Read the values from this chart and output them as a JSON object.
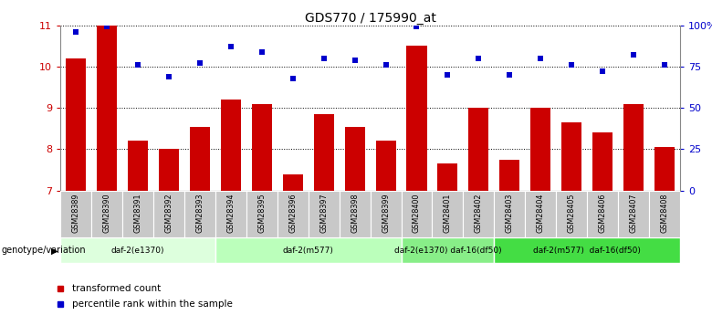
{
  "title": "GDS770 / 175990_at",
  "samples": [
    "GSM28389",
    "GSM28390",
    "GSM28391",
    "GSM28392",
    "GSM28393",
    "GSM28394",
    "GSM28395",
    "GSM28396",
    "GSM28397",
    "GSM28398",
    "GSM28399",
    "GSM28400",
    "GSM28401",
    "GSM28402",
    "GSM28403",
    "GSM28404",
    "GSM28405",
    "GSM28406",
    "GSM28407",
    "GSM28408"
  ],
  "bar_values": [
    10.2,
    11.0,
    8.2,
    8.0,
    8.55,
    9.2,
    9.1,
    7.4,
    8.85,
    8.55,
    8.2,
    10.5,
    7.65,
    9.0,
    7.75,
    9.0,
    8.65,
    8.4,
    9.1,
    8.05
  ],
  "dot_values": [
    96,
    99,
    76,
    69,
    77,
    87,
    84,
    68,
    80,
    79,
    76,
    99,
    70,
    80,
    70,
    80,
    76,
    72,
    82,
    76
  ],
  "ylim_left": [
    7,
    11
  ],
  "ylim_right": [
    0,
    100
  ],
  "yticks_left": [
    7,
    8,
    9,
    10,
    11
  ],
  "yticks_right": [
    0,
    25,
    50,
    75,
    100
  ],
  "ytick_labels_right": [
    "0",
    "25",
    "50",
    "75",
    "100%"
  ],
  "bar_color": "#cc0000",
  "dot_color": "#0000cc",
  "grid_color": "#888888",
  "bg_color": "#ffffff",
  "genotype_label": "genotype/variation",
  "groups": [
    {
      "label": "daf-2(e1370)",
      "start": 0,
      "end": 4,
      "color": "#ddffdd"
    },
    {
      "label": "daf-2(m577)",
      "start": 5,
      "end": 10,
      "color": "#bbffbb"
    },
    {
      "label": "daf-2(e1370) daf-16(df50)",
      "start": 11,
      "end": 13,
      "color": "#88ee88"
    },
    {
      "label": "daf-2(m577)  daf-16(df50)",
      "start": 14,
      "end": 19,
      "color": "#44dd44"
    }
  ],
  "legend_bar_label": "transformed count",
  "legend_dot_label": "percentile rank within the sample",
  "title_fontsize": 10,
  "tick_fontsize": 8,
  "axis_label_color_left": "#cc0000",
  "axis_label_color_right": "#0000cc",
  "label_bg_color": "#c8c8c8"
}
